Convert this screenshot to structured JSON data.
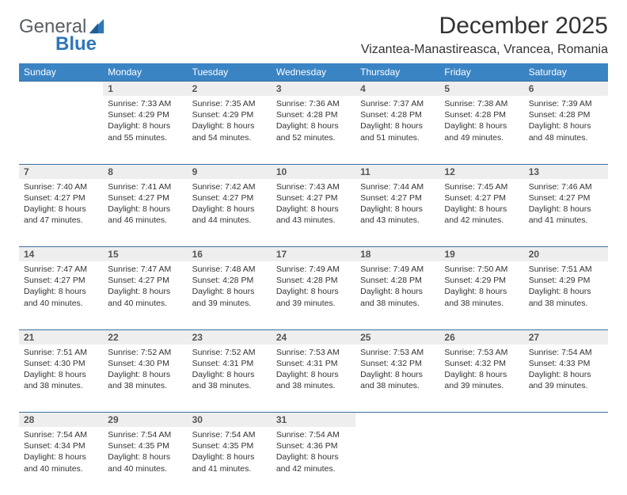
{
  "brand": {
    "part1": "General",
    "part2": "Blue"
  },
  "title": "December 2025",
  "location": "Vizantea-Manastireasca, Vrancea, Romania",
  "style": {
    "header_bg": "#3b84c4",
    "header_text": "#ffffff",
    "daynum_bg": "#eeeeee",
    "daynum_border": "#3b6f9e",
    "body_text": "#333333",
    "page_bg": "#ffffff",
    "font_family": "Arial",
    "title_fontsize_pt": 22,
    "location_fontsize_pt": 12,
    "weekday_fontsize_pt": 9,
    "cell_fontsize_pt": 8
  },
  "weekdays": [
    "Sunday",
    "Monday",
    "Tuesday",
    "Wednesday",
    "Thursday",
    "Friday",
    "Saturday"
  ],
  "weeks": [
    [
      null,
      {
        "n": "1",
        "sr": "Sunrise: 7:33 AM",
        "ss": "Sunset: 4:29 PM",
        "d1": "Daylight: 8 hours",
        "d2": "and 55 minutes."
      },
      {
        "n": "2",
        "sr": "Sunrise: 7:35 AM",
        "ss": "Sunset: 4:29 PM",
        "d1": "Daylight: 8 hours",
        "d2": "and 54 minutes."
      },
      {
        "n": "3",
        "sr": "Sunrise: 7:36 AM",
        "ss": "Sunset: 4:28 PM",
        "d1": "Daylight: 8 hours",
        "d2": "and 52 minutes."
      },
      {
        "n": "4",
        "sr": "Sunrise: 7:37 AM",
        "ss": "Sunset: 4:28 PM",
        "d1": "Daylight: 8 hours",
        "d2": "and 51 minutes."
      },
      {
        "n": "5",
        "sr": "Sunrise: 7:38 AM",
        "ss": "Sunset: 4:28 PM",
        "d1": "Daylight: 8 hours",
        "d2": "and 49 minutes."
      },
      {
        "n": "6",
        "sr": "Sunrise: 7:39 AM",
        "ss": "Sunset: 4:28 PM",
        "d1": "Daylight: 8 hours",
        "d2": "and 48 minutes."
      }
    ],
    [
      {
        "n": "7",
        "sr": "Sunrise: 7:40 AM",
        "ss": "Sunset: 4:27 PM",
        "d1": "Daylight: 8 hours",
        "d2": "and 47 minutes."
      },
      {
        "n": "8",
        "sr": "Sunrise: 7:41 AM",
        "ss": "Sunset: 4:27 PM",
        "d1": "Daylight: 8 hours",
        "d2": "and 46 minutes."
      },
      {
        "n": "9",
        "sr": "Sunrise: 7:42 AM",
        "ss": "Sunset: 4:27 PM",
        "d1": "Daylight: 8 hours",
        "d2": "and 44 minutes."
      },
      {
        "n": "10",
        "sr": "Sunrise: 7:43 AM",
        "ss": "Sunset: 4:27 PM",
        "d1": "Daylight: 8 hours",
        "d2": "and 43 minutes."
      },
      {
        "n": "11",
        "sr": "Sunrise: 7:44 AM",
        "ss": "Sunset: 4:27 PM",
        "d1": "Daylight: 8 hours",
        "d2": "and 43 minutes."
      },
      {
        "n": "12",
        "sr": "Sunrise: 7:45 AM",
        "ss": "Sunset: 4:27 PM",
        "d1": "Daylight: 8 hours",
        "d2": "and 42 minutes."
      },
      {
        "n": "13",
        "sr": "Sunrise: 7:46 AM",
        "ss": "Sunset: 4:27 PM",
        "d1": "Daylight: 8 hours",
        "d2": "and 41 minutes."
      }
    ],
    [
      {
        "n": "14",
        "sr": "Sunrise: 7:47 AM",
        "ss": "Sunset: 4:27 PM",
        "d1": "Daylight: 8 hours",
        "d2": "and 40 minutes."
      },
      {
        "n": "15",
        "sr": "Sunrise: 7:47 AM",
        "ss": "Sunset: 4:27 PM",
        "d1": "Daylight: 8 hours",
        "d2": "and 40 minutes."
      },
      {
        "n": "16",
        "sr": "Sunrise: 7:48 AM",
        "ss": "Sunset: 4:28 PM",
        "d1": "Daylight: 8 hours",
        "d2": "and 39 minutes."
      },
      {
        "n": "17",
        "sr": "Sunrise: 7:49 AM",
        "ss": "Sunset: 4:28 PM",
        "d1": "Daylight: 8 hours",
        "d2": "and 39 minutes."
      },
      {
        "n": "18",
        "sr": "Sunrise: 7:49 AM",
        "ss": "Sunset: 4:28 PM",
        "d1": "Daylight: 8 hours",
        "d2": "and 38 minutes."
      },
      {
        "n": "19",
        "sr": "Sunrise: 7:50 AM",
        "ss": "Sunset: 4:29 PM",
        "d1": "Daylight: 8 hours",
        "d2": "and 38 minutes."
      },
      {
        "n": "20",
        "sr": "Sunrise: 7:51 AM",
        "ss": "Sunset: 4:29 PM",
        "d1": "Daylight: 8 hours",
        "d2": "and 38 minutes."
      }
    ],
    [
      {
        "n": "21",
        "sr": "Sunrise: 7:51 AM",
        "ss": "Sunset: 4:30 PM",
        "d1": "Daylight: 8 hours",
        "d2": "and 38 minutes."
      },
      {
        "n": "22",
        "sr": "Sunrise: 7:52 AM",
        "ss": "Sunset: 4:30 PM",
        "d1": "Daylight: 8 hours",
        "d2": "and 38 minutes."
      },
      {
        "n": "23",
        "sr": "Sunrise: 7:52 AM",
        "ss": "Sunset: 4:31 PM",
        "d1": "Daylight: 8 hours",
        "d2": "and 38 minutes."
      },
      {
        "n": "24",
        "sr": "Sunrise: 7:53 AM",
        "ss": "Sunset: 4:31 PM",
        "d1": "Daylight: 8 hours",
        "d2": "and 38 minutes."
      },
      {
        "n": "25",
        "sr": "Sunrise: 7:53 AM",
        "ss": "Sunset: 4:32 PM",
        "d1": "Daylight: 8 hours",
        "d2": "and 38 minutes."
      },
      {
        "n": "26",
        "sr": "Sunrise: 7:53 AM",
        "ss": "Sunset: 4:32 PM",
        "d1": "Daylight: 8 hours",
        "d2": "and 39 minutes."
      },
      {
        "n": "27",
        "sr": "Sunrise: 7:54 AM",
        "ss": "Sunset: 4:33 PM",
        "d1": "Daylight: 8 hours",
        "d2": "and 39 minutes."
      }
    ],
    [
      {
        "n": "28",
        "sr": "Sunrise: 7:54 AM",
        "ss": "Sunset: 4:34 PM",
        "d1": "Daylight: 8 hours",
        "d2": "and 40 minutes."
      },
      {
        "n": "29",
        "sr": "Sunrise: 7:54 AM",
        "ss": "Sunset: 4:35 PM",
        "d1": "Daylight: 8 hours",
        "d2": "and 40 minutes."
      },
      {
        "n": "30",
        "sr": "Sunrise: 7:54 AM",
        "ss": "Sunset: 4:35 PM",
        "d1": "Daylight: 8 hours",
        "d2": "and 41 minutes."
      },
      {
        "n": "31",
        "sr": "Sunrise: 7:54 AM",
        "ss": "Sunset: 4:36 PM",
        "d1": "Daylight: 8 hours",
        "d2": "and 42 minutes."
      },
      null,
      null,
      null
    ]
  ]
}
